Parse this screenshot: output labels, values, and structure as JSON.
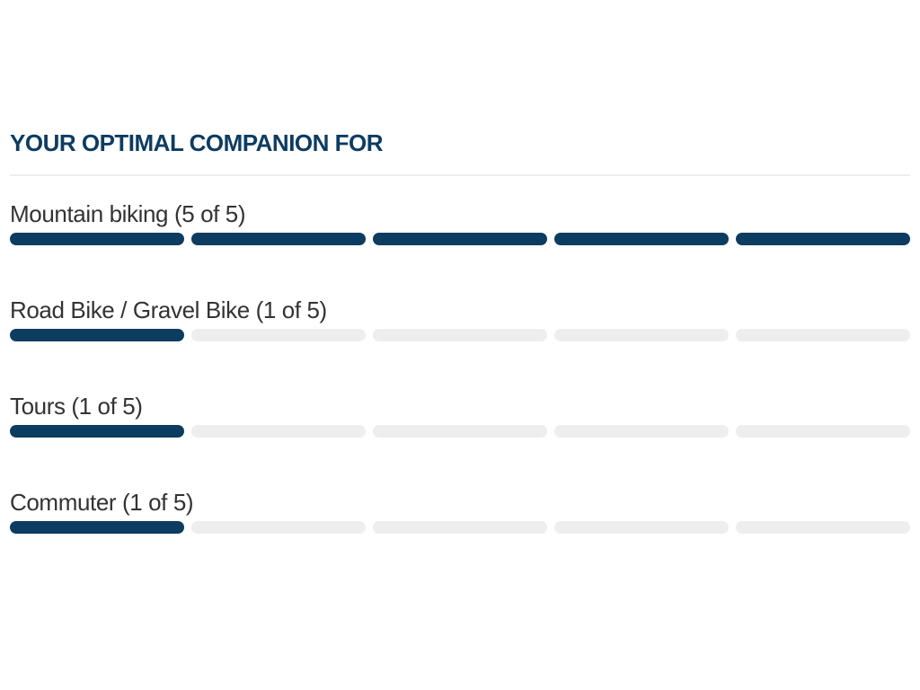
{
  "section": {
    "title": "YOUR OPTIMAL COMPANION FOR"
  },
  "colors": {
    "accent": "#0d3c61",
    "empty_segment": "#eeeeee",
    "label_text": "#333333"
  },
  "ratings": [
    {
      "label": "Mountain biking (5 of 5)",
      "value": 5,
      "max": 5
    },
    {
      "label": "Road Bike / Gravel Bike (1 of 5)",
      "value": 1,
      "max": 5
    },
    {
      "label": "Tours (1 of 5)",
      "value": 1,
      "max": 5
    },
    {
      "label": "Commuter (1 of 5)",
      "value": 1,
      "max": 5
    }
  ]
}
